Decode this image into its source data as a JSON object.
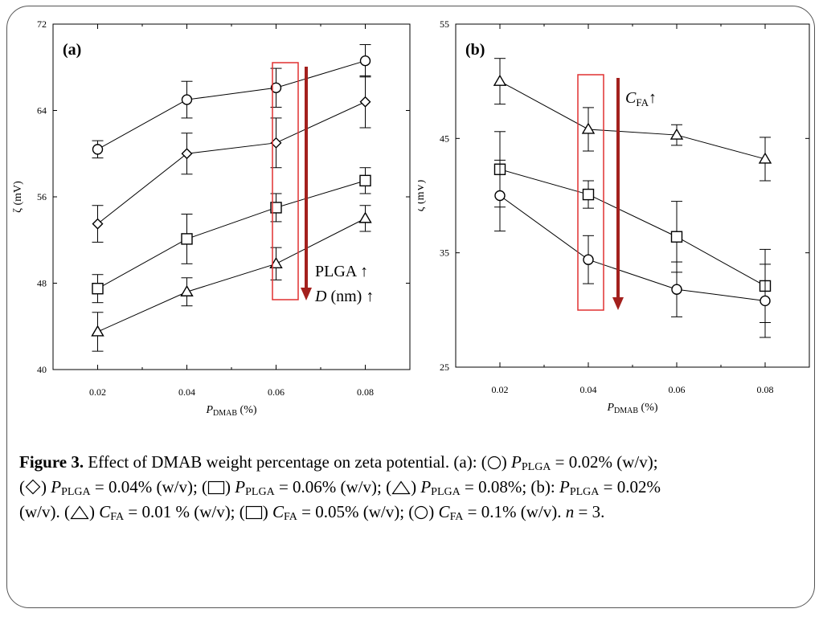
{
  "chart_data": [
    {
      "type": "line",
      "panel_label": "(a)",
      "xlabel_main": "P",
      "xlabel_sub": "DMAB",
      "xlabel_unit": "(%)",
      "ylabel": "ζ (mV)",
      "x": [
        0.02,
        0.04,
        0.06,
        0.08
      ],
      "x_ticks": [
        "0.02",
        "0.04",
        "0.06",
        "0.08"
      ],
      "xlim": [
        0.01,
        0.09
      ],
      "ylim": [
        40,
        72
      ],
      "y_ticks": [
        "40",
        "48",
        "56",
        "64",
        "72"
      ],
      "y_tick_values": [
        40,
        48,
        56,
        64,
        72
      ],
      "series": [
        {
          "marker": "circle",
          "values": [
            60.4,
            65.0,
            66.1,
            68.6
          ],
          "errors": [
            0.8,
            1.7,
            1.8,
            1.5
          ]
        },
        {
          "marker": "diamond",
          "values": [
            53.5,
            60.0,
            61.0,
            64.8
          ],
          "errors": [
            1.7,
            1.9,
            2.3,
            2.4
          ]
        },
        {
          "marker": "square",
          "values": [
            47.5,
            52.1,
            55.0,
            57.5
          ],
          "errors": [
            1.3,
            2.3,
            1.3,
            1.2
          ]
        },
        {
          "marker": "triangle",
          "values": [
            43.5,
            47.2,
            49.8,
            54.0
          ],
          "errors": [
            1.8,
            1.3,
            1.5,
            1.2
          ]
        }
      ],
      "annotation_lines": [
        "PLGA ↑",
        "(nm) ↑"
      ],
      "annotation_italic": "D",
      "accent_color": "#a3201d",
      "box_color": "#e03030"
    },
    {
      "type": "line",
      "panel_label": "(b)",
      "xlabel_main": "P",
      "xlabel_sub": "DMAB",
      "xlabel_unit": "(%)",
      "ylabel": "ζ (mV)",
      "x": [
        0.02,
        0.04,
        0.06,
        0.08
      ],
      "x_ticks": [
        "0.02",
        "0.04",
        "0.06",
        "0.08"
      ],
      "xlim": [
        0.01,
        0.09
      ],
      "ylim": [
        25,
        55
      ],
      "y_ticks": [
        "25",
        "35",
        "45",
        "55"
      ],
      "y_tick_values": [
        25,
        35,
        45,
        55
      ],
      "series": [
        {
          "marker": "triangle",
          "values": [
            50.0,
            45.8,
            45.3,
            43.2
          ],
          "errors": [
            2.0,
            1.9,
            0.9,
            1.9
          ]
        },
        {
          "marker": "square",
          "values": [
            42.3,
            40.1,
            36.4,
            32.1
          ],
          "errors": [
            3.3,
            1.2,
            3.1,
            3.2
          ]
        },
        {
          "marker": "circle",
          "values": [
            40.0,
            34.4,
            31.8,
            30.8
          ],
          "errors": [
            3.1,
            2.1,
            2.4,
            3.2
          ]
        }
      ],
      "annotation_main": "C",
      "annotation_sub": "FA",
      "annotation_suffix": "↑",
      "accent_color": "#a3201d",
      "box_color": "#e03030"
    }
  ],
  "caption": {
    "figure_label": "Figure 3.",
    "text_1": " Effect of DMAB weight percentage on zeta potential. (a): (",
    "text_2": ") ",
    "p": "P",
    "plga": "PLGA",
    "eq_1": " = 0.02% (w/v);",
    "eq_2": " = 0.04% (w/v); (",
    "eq_3": " = 0.06% (w/v); (",
    "eq_4": " = 0.08%; (b): ",
    "eq_5": " = 0.02%",
    "line3_start": "(w/v). (",
    "c": "C",
    "fa": "FA",
    "eq_6": " = 0.01 % (w/v); (",
    "eq_7": " = 0.05% (w/v); (",
    "eq_8": " = 0.1% (w/v). ",
    "n": "n",
    "eq_9": " = 3."
  }
}
